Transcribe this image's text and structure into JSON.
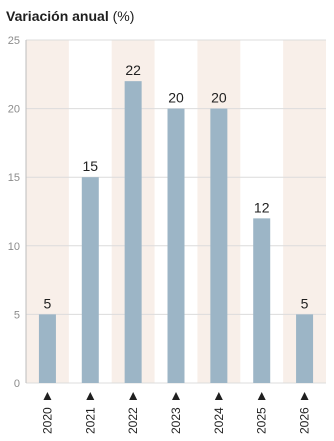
{
  "chart_data": {
    "type": "bar",
    "title": "Variación anual",
    "unit": "(%)",
    "categories": [
      "2020",
      "2021",
      "2022",
      "2023",
      "2024",
      "2025",
      "2026"
    ],
    "values": [
      5,
      15,
      22,
      20,
      20,
      12,
      5
    ],
    "data_labels": [
      "5",
      "15",
      "22",
      "20",
      "20",
      "12",
      "5"
    ],
    "ylim": [
      0,
      25
    ],
    "yticks": [
      0,
      5,
      10,
      15,
      20,
      25
    ],
    "grid": true,
    "xlabel": "",
    "ylabel": ""
  },
  "colors": {
    "bar": "#9cb5c6",
    "band": "#f8efe9",
    "grid": "#dcdcdc",
    "axis": "#bdbdbd",
    "text": "#1f1f1f",
    "tick_text": "#8c8c8c"
  },
  "icons": {
    "marker": "triangle-up"
  }
}
